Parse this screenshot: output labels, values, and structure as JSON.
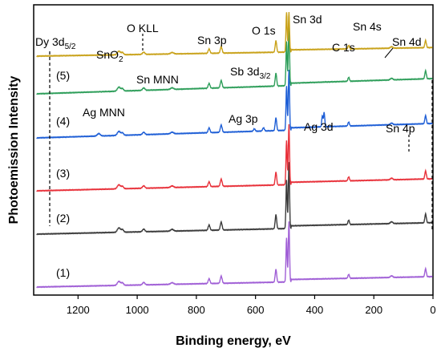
{
  "chart_data": {
    "type": "line",
    "title": "",
    "xlabel": "Binding energy, eV",
    "ylabel": "Photoemission Intensity",
    "xlim": [
      1350,
      0
    ],
    "x_ticks": [
      "1200",
      "1000",
      "800",
      "600",
      "400",
      "200",
      "0"
    ],
    "x_tick_values": [
      1200,
      1000,
      800,
      600,
      400,
      200,
      0
    ],
    "y_ticks_shown": false,
    "grid": false,
    "legend": "none",
    "series": [
      {
        "name": "(1)",
        "color": "#a05fd6"
      },
      {
        "name": "(2)",
        "color": "#3c3c3c"
      },
      {
        "name": "(3)",
        "color": "#e8313a"
      },
      {
        "name": "(4)",
        "color": "#1f5fd6"
      },
      {
        "name": "(5)",
        "color": "#2e9e5a"
      },
      {
        "name": "SnO₂",
        "color": "#c9a21a"
      }
    ],
    "peaks": [
      {
        "name": "Sn 3d",
        "x": 487
      },
      {
        "name": "O 1s",
        "x": 531
      },
      {
        "name": "Sn 3p",
        "x": 716
      },
      {
        "name": "Sn 4d",
        "x": 25
      },
      {
        "name": "C 1s",
        "x": 285
      },
      {
        "name": "Ag 3d",
        "x": 368
      },
      {
        "name": "Sb 3d3/2",
        "x": 540
      }
    ],
    "annotations": {
      "dy": "Dy 3d",
      "dy_sub": "5/2",
      "sno2": "SnO",
      "sno2_sub": "2",
      "okll": "O KLL",
      "sn3p": "Sn 3p",
      "o1s": "O 1s",
      "sn3d": "Sn 3d",
      "sn4s": "Sn 4s",
      "sn4d": "Sn 4d",
      "c1s": "C 1s",
      "snmnn": "Sn MNN",
      "sb3d": "Sb 3d",
      "sb3d_sub": "3/2",
      "agmnn": "Ag MNN",
      "ag3p": "Ag 3p",
      "ag3d": "Ag 3d",
      "sn4p": "Sn 4p",
      "l1": "(1)",
      "l2": "(2)",
      "l3": "(3)",
      "l4": "(4)",
      "l5": "(5)"
    }
  }
}
